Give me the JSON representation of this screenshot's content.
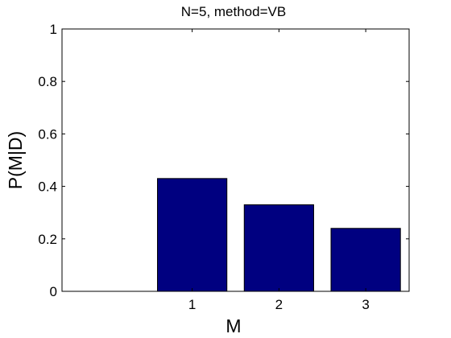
{
  "chart_data": {
    "type": "bar",
    "title": "N=5, method=VB",
    "xlabel": "M",
    "ylabel": "P(M|D)",
    "categories": [
      "1",
      "2",
      "3"
    ],
    "x": [
      1,
      2,
      3
    ],
    "values": [
      0.43,
      0.33,
      0.24
    ],
    "xlim": [
      -0.5,
      3.5
    ],
    "ylim": [
      0,
      1
    ],
    "yticks": [
      0,
      0.2,
      0.4,
      0.6,
      0.8,
      1
    ],
    "ytick_labels": [
      "0",
      "0.2",
      "0.4",
      "0.6",
      "0.8",
      "1"
    ],
    "grid": false,
    "bar_color": "#000080"
  }
}
